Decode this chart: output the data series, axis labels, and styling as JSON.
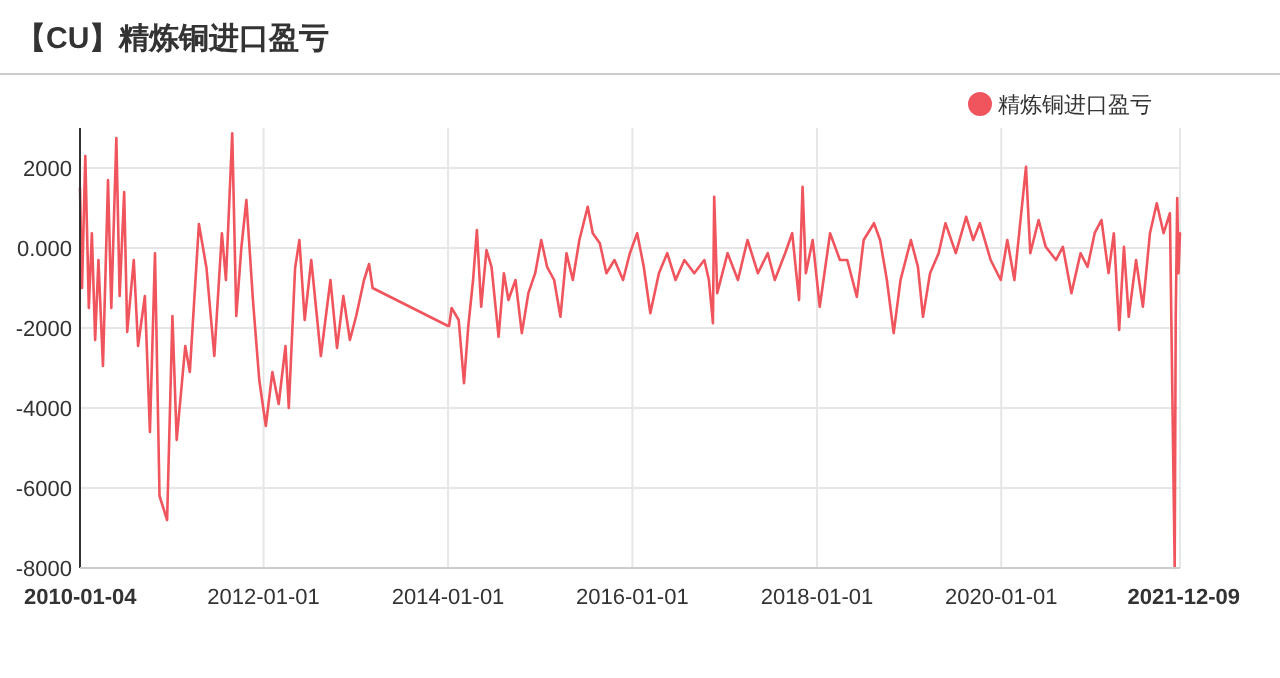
{
  "chart_data": {
    "type": "line",
    "title": "【CU】精炼铜进口盈亏",
    "legend": "top right",
    "grid": true,
    "marker": "none",
    "line_style": "solid",
    "xlim": [
      "2010-01-04",
      "2021-12-09"
    ],
    "xticks": [
      {
        "value": "2010-01-04",
        "label": "2010-01-04"
      },
      {
        "value": "2012-01-01",
        "label": "2012-01-01"
      },
      {
        "value": "2014-01-01",
        "label": "2014-01-01"
      },
      {
        "value": "2016-01-01",
        "label": "2016-01-01"
      },
      {
        "value": "2018-01-01",
        "label": "2018-01-01"
      },
      {
        "value": "2020-01-01",
        "label": "2020-01-01"
      },
      {
        "value": "2021-12-09",
        "label": "2021-12-09"
      }
    ],
    "ylim": [
      -8000,
      3000
    ],
    "yticks": [
      -8000,
      -6000,
      -4000,
      -2000,
      {
        "value": 0,
        "label": "0.000"
      },
      2000
    ],
    "x": [
      "2010-01-04",
      "2010-01-12",
      "2010-01-25",
      "2010-02-08",
      "2010-02-20",
      "2010-03-05",
      "2010-03-18",
      "2010-04-05",
      "2010-04-25",
      "2010-05-08",
      "2010-05-28",
      "2010-06-10",
      "2010-06-28",
      "2010-07-10",
      "2010-08-05",
      "2010-08-22",
      "2010-09-18",
      "2010-10-08",
      "2010-10-28",
      "2010-11-15",
      "2010-12-15",
      "2011-01-05",
      "2011-01-22",
      "2011-02-25",
      "2011-03-15",
      "2011-04-20",
      "2011-05-20",
      "2011-06-20",
      "2011-07-20",
      "2011-08-05",
      "2011-08-30",
      "2011-09-15",
      "2011-10-05",
      "2011-10-25",
      "2011-11-20",
      "2011-12-15",
      "2012-01-10",
      "2012-02-05",
      "2012-03-01",
      "2012-03-28",
      "2012-04-10",
      "2012-05-05",
      "2012-05-22",
      "2012-06-12",
      "2012-07-08",
      "2012-08-15",
      "2012-09-22",
      "2012-10-18",
      "2012-11-12",
      "2012-12-08",
      "2013-01-02",
      "2013-02-02",
      "2013-02-22",
      "2013-03-08",
      "2014-01-01",
      "2014-01-05",
      "2014-01-15",
      "2014-02-12",
      "2014-03-05",
      "2014-03-22",
      "2014-04-10",
      "2014-04-25",
      "2014-05-12",
      "2014-06-02",
      "2014-06-22",
      "2014-07-20",
      "2014-08-10",
      "2014-08-28",
      "2014-09-25",
      "2014-10-20",
      "2014-11-15",
      "2014-12-12",
      "2015-01-05",
      "2015-01-28",
      "2015-02-25",
      "2015-03-22",
      "2015-04-15",
      "2015-05-10",
      "2015-06-05",
      "2015-07-08",
      "2015-07-28",
      "2015-08-25",
      "2015-09-20",
      "2015-10-22",
      "2015-11-25",
      "2015-12-22",
      "2016-01-20",
      "2016-02-15",
      "2016-03-12",
      "2016-04-15",
      "2016-05-18",
      "2016-06-20",
      "2016-07-25",
      "2016-09-02",
      "2016-10-12",
      "2016-10-30",
      "2016-11-15",
      "2016-11-20",
      "2016-12-02",
      "2017-01-12",
      "2017-02-22",
      "2017-04-01",
      "2017-05-12",
      "2017-06-20",
      "2017-07-18",
      "2017-08-28",
      "2017-09-25",
      "2017-10-22",
      "2017-11-05",
      "2017-11-18",
      "2017-12-15",
      "2018-01-12",
      "2018-02-22",
      "2018-04-02",
      "2018-05-01",
      "2018-06-08",
      "2018-07-05",
      "2018-08-15",
      "2018-09-08",
      "2018-10-05",
      "2018-11-01",
      "2018-11-28",
      "2019-01-08",
      "2019-02-05",
      "2019-02-25",
      "2019-03-25",
      "2019-04-28",
      "2019-05-25",
      "2019-07-05",
      "2019-08-15",
      "2019-09-12",
      "2019-10-08",
      "2019-11-20",
      "2019-12-30",
      "2020-01-25",
      "2020-02-22",
      "2020-03-12",
      "2020-04-08",
      "2020-04-25",
      "2020-05-28",
      "2020-06-25",
      "2020-08-05",
      "2020-09-01",
      "2020-10-05",
      "2020-11-10",
      "2020-12-08",
      "2021-01-05",
      "2021-02-01",
      "2021-03-01",
      "2021-03-22",
      "2021-04-12",
      "2021-05-01",
      "2021-05-20",
      "2021-06-18",
      "2021-07-15",
      "2021-08-12",
      "2021-09-08",
      "2021-10-05",
      "2021-10-30",
      "2021-11-18",
      "2021-11-22",
      "2021-11-28",
      "2021-12-03",
      "2021-12-09"
    ],
    "series": [
      {
        "name": "精炼铜进口盈亏",
        "color": "#f0545d",
        "values": [
          1500,
          -1000,
          2300,
          -1500,
          370,
          -2300,
          -300,
          -2950,
          1700,
          -1500,
          2750,
          -1200,
          1400,
          -2100,
          -300,
          -2450,
          -1200,
          -4600,
          -130,
          -6200,
          -6800,
          -1700,
          -4800,
          -2450,
          -3100,
          600,
          -500,
          -2700,
          370,
          -800,
          2870,
          -1700,
          0,
          1200,
          -1300,
          -3300,
          -4450,
          -3100,
          -3900,
          -2450,
          -4000,
          -500,
          200,
          -1800,
          -300,
          -2700,
          -800,
          -2500,
          -1200,
          -2300,
          -1700,
          -800,
          -400,
          -1000,
          -1950,
          -1950,
          -1500,
          -1800,
          -3380,
          -1950,
          -800,
          450,
          -1470,
          -50,
          -470,
          -2220,
          -630,
          -1300,
          -800,
          -2130,
          -1130,
          -630,
          200,
          -470,
          -800,
          -1720,
          -130,
          -800,
          200,
          1030,
          370,
          120,
          -630,
          -300,
          -800,
          -130,
          370,
          -470,
          -1630,
          -630,
          -130,
          -800,
          -300,
          -630,
          -300,
          -800,
          -1880,
          1280,
          -1130,
          -130,
          -800,
          200,
          -630,
          -130,
          -800,
          -130,
          370,
          -1300,
          1530,
          -630,
          200,
          -1470,
          370,
          -300,
          -300,
          -1220,
          200,
          620,
          200,
          -800,
          -2130,
          -800,
          200,
          -470,
          -1720,
          -630,
          -130,
          620,
          -130,
          780,
          200,
          620,
          -300,
          -800,
          200,
          -800,
          370,
          2030,
          -130,
          700,
          30,
          -300,
          30,
          -1130,
          -130,
          -470,
          370,
          700,
          -630,
          370,
          -2050,
          30,
          -1720,
          -300,
          -1470,
          370,
          1120,
          370,
          870,
          -8000,
          -1800,
          1250,
          -630,
          370
        ]
      }
    ]
  }
}
